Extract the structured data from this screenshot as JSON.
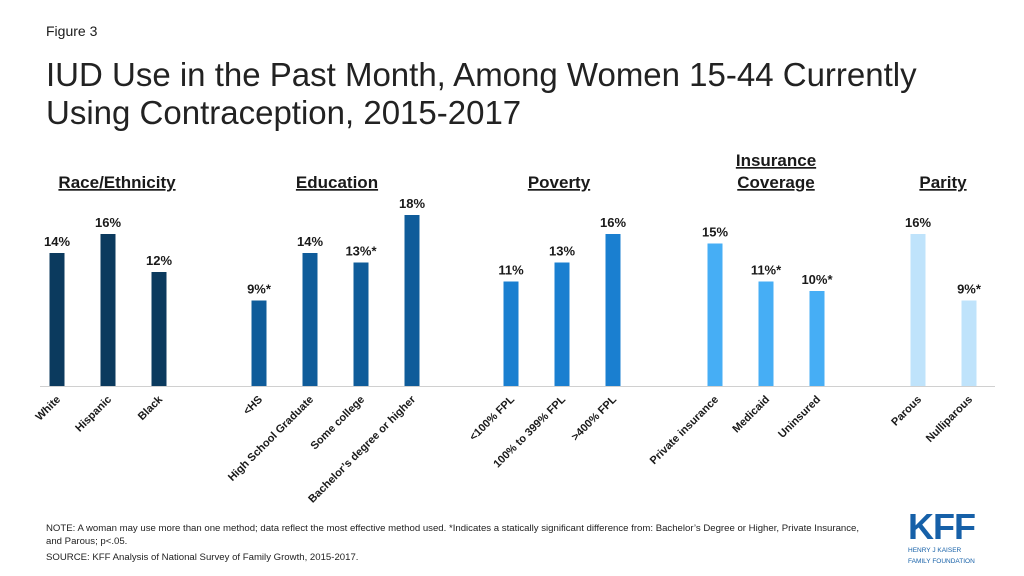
{
  "figure_label": "Figure 3",
  "title": "IUD Use in the Past Month, Among Women 15-44 Currently Using Contraception, 2015-2017",
  "note": "NOTE: A woman may use more than one method; data reflect the most effective method used. *Indicates a statically significant difference from: Bachelor’s Degree or Higher, Private Insurance, and Parous; p<.05.",
  "source": "SOURCE: KFF Analysis of National Survey of Family Growth, 2015-2017.",
  "logo": {
    "mark": "KFF",
    "line1": "HENRY J KAISER",
    "line2": "FAMILY FOUNDATION"
  },
  "chart_data": {
    "type": "bar",
    "ylim": [
      0,
      18
    ],
    "grid": false,
    "groups": [
      {
        "name": [
          "Race/Ethnicity"
        ],
        "color": "#0b3a5e",
        "bars": [
          {
            "label": "White",
            "value": 14,
            "value_label": "14%"
          },
          {
            "label": "Hispanic",
            "value": 16,
            "value_label": "16%"
          },
          {
            "label": "Black",
            "value": 12,
            "value_label": "12%"
          }
        ]
      },
      {
        "name": [
          "Education"
        ],
        "color": "#0f5c9a",
        "bars": [
          {
            "label": "<HS",
            "value": 9,
            "value_label": "9%*"
          },
          {
            "label": "High School Graduate",
            "value": 14,
            "value_label": "14%"
          },
          {
            "label": "Some college",
            "value": 13,
            "value_label": "13%*"
          },
          {
            "label": "Bachelor’s degree or higher",
            "value": 18,
            "value_label": "18%"
          }
        ]
      },
      {
        "name": [
          "Poverty"
        ],
        "color": "#1a7fd0",
        "bars": [
          {
            "label": "<100% FPL",
            "value": 11,
            "value_label": "11%"
          },
          {
            "label": "100% to 399% FPL",
            "value": 13,
            "value_label": "13%"
          },
          {
            "label": ">400% FPL",
            "value": 16,
            "value_label": "16%"
          }
        ]
      },
      {
        "name": [
          "Insurance",
          "Coverage"
        ],
        "color": "#46aef5",
        "bars": [
          {
            "label": "Private insurance",
            "value": 15,
            "value_label": "15%"
          },
          {
            "label": "Medicaid",
            "value": 11,
            "value_label": "11%*"
          },
          {
            "label": "Uninsured",
            "value": 10,
            "value_label": "10%*"
          }
        ]
      },
      {
        "name": [
          "Parity"
        ],
        "color": "#bfe3fb",
        "bars": [
          {
            "label": "Parous",
            "value": 16,
            "value_label": "16%"
          },
          {
            "label": "Nulliparous",
            "value": 9,
            "value_label": "9%*"
          }
        ]
      }
    ]
  }
}
